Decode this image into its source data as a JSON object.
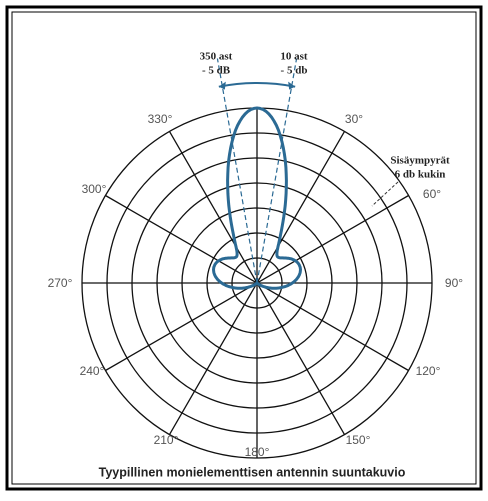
{
  "annotations": {
    "left": [
      "350 ast",
      "- 5 dB"
    ],
    "right": [
      "10 ast",
      "- 5 db"
    ],
    "rings": [
      "Sisäympyrät",
      "6 db kukin"
    ]
  },
  "angle_labels": [
    "330°",
    "30°",
    "300°",
    "60°",
    "270°",
    "90°",
    "240°",
    "120°",
    "210°",
    "150°",
    "180°"
  ],
  "caption": "Tyypillinen monielementtisen antennin suuntakuvio"
}
